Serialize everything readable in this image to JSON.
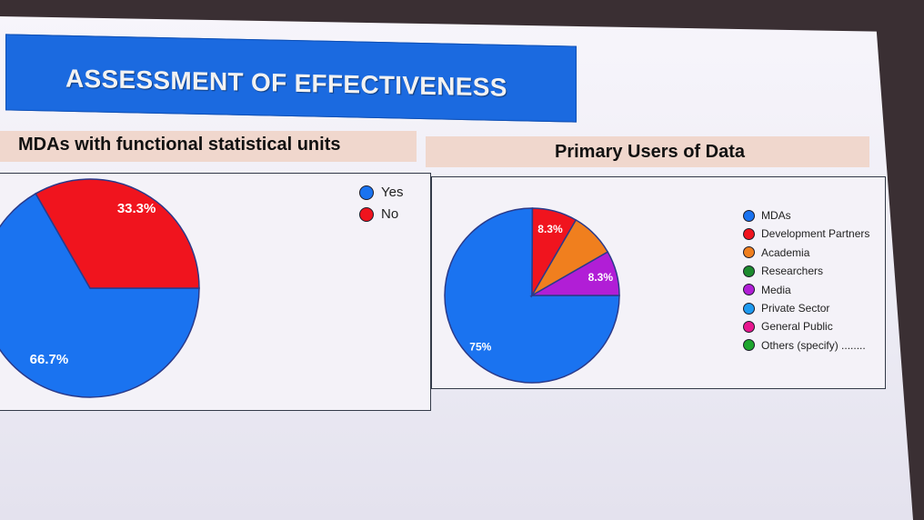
{
  "slide": {
    "title": "ASSESSMENT OF EFFECTIVENESS"
  },
  "chart_data": [
    {
      "type": "pie",
      "title": "MDAs with functional statistical units",
      "categories": [
        "Yes",
        "No"
      ],
      "values": [
        66.7,
        33.3
      ],
      "labels": [
        "66.7%",
        "33.3%"
      ],
      "colors": [
        "#1a73f0",
        "#f0141e"
      ],
      "legend_position": "top-right"
    },
    {
      "type": "pie",
      "title": "Primary Users of Data",
      "categories": [
        "MDAs",
        "Development Partners",
        "Academia",
        "Researchers",
        "Media",
        "Private Sector",
        "General Public",
        "Others (specify) ........"
      ],
      "values": [
        75,
        8.3,
        8.3,
        0,
        8.3,
        0,
        0,
        0
      ],
      "labels": [
        "75%",
        "8.3%",
        "",
        "",
        "8.3%",
        "",
        "",
        ""
      ],
      "colors": [
        "#1a73f0",
        "#f0141e",
        "#f07f1e",
        "#1c8a2e",
        "#b11ed6",
        "#1e9af0",
        "#e8168f",
        "#1ea62e"
      ],
      "legend_position": "right"
    }
  ]
}
